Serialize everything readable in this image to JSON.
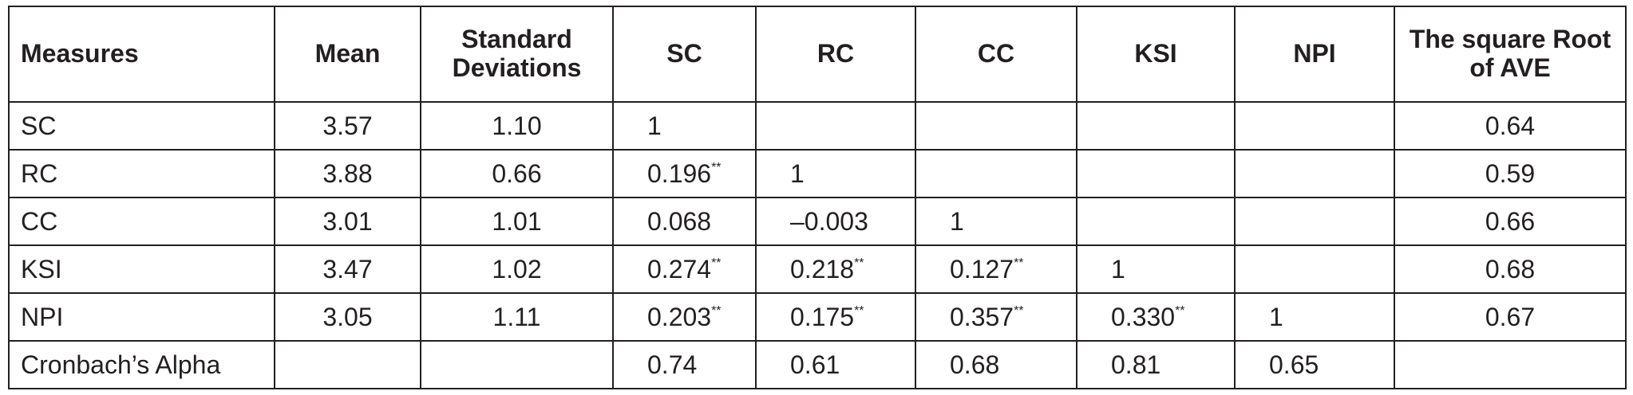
{
  "table": {
    "header": [
      "Measures",
      "Mean",
      "Standard Deviations",
      "SC",
      "RC",
      "CC",
      "KSI",
      "NPI",
      "The square Root of AVE"
    ],
    "rows": [
      [
        "SC",
        "3.57",
        "1.10",
        "1",
        null,
        null,
        null,
        null,
        "0.64"
      ],
      [
        "RC",
        "3.88",
        "0.66",
        {
          "text": "0.196",
          "sup": "**"
        },
        "1",
        null,
        null,
        null,
        "0.59"
      ],
      [
        "CC",
        "3.01",
        "1.01",
        "0.068",
        "–0.003",
        "1",
        null,
        null,
        "0.66"
      ],
      [
        "KSI",
        "3.47",
        "1.02",
        {
          "text": "0.274",
          "sup": "**"
        },
        {
          "text": "0.218",
          "sup": "**"
        },
        {
          "text": "0.127",
          "sup": "**"
        },
        "1",
        null,
        "0.68"
      ],
      [
        "NPI",
        "3.05",
        "1.11",
        {
          "text": "0.203",
          "sup": "**"
        },
        {
          "text": "0.175",
          "sup": "**"
        },
        {
          "text": "0.357",
          "sup": "**"
        },
        {
          "text": "0.330",
          "sup": "**"
        },
        "1",
        "0.67"
      ],
      [
        "Cronbach’s Alpha",
        null,
        null,
        "0.74",
        "0.61",
        "0.68",
        "0.81",
        "0.65",
        null
      ]
    ]
  }
}
